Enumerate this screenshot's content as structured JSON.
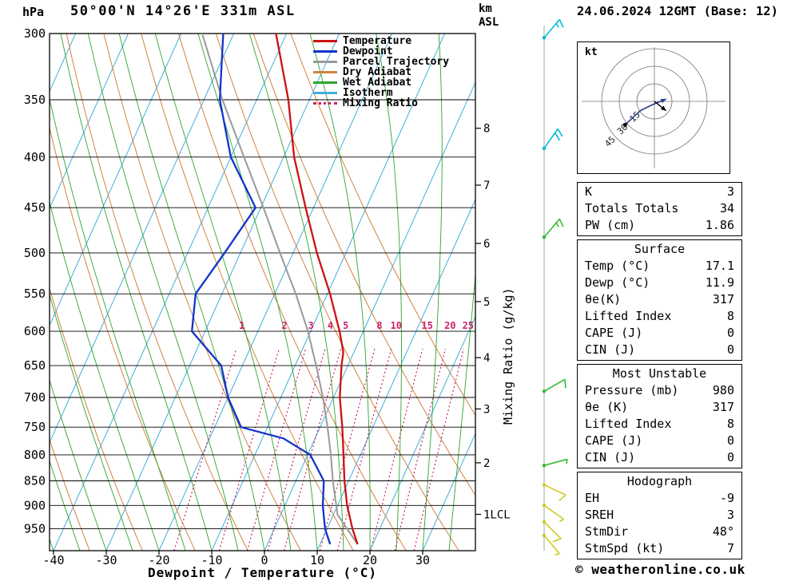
{
  "header": {
    "pressure_unit": "hPa",
    "title": "50°00'N 14°26'E 331m ASL",
    "km_label": "km",
    "asl_label": "ASL",
    "date": "24.06.2024 12GMT (Base: 12)"
  },
  "legend": [
    {
      "label": "Temperature",
      "color": "#cc1111",
      "style": "solid"
    },
    {
      "label": "Dewpoint",
      "color": "#1133cc",
      "style": "solid"
    },
    {
      "label": "Parcel Trajectory",
      "color": "#999999",
      "style": "solid"
    },
    {
      "label": "Dry Adiabat",
      "color": "#d2843c",
      "style": "solid"
    },
    {
      "label": "Wet Adiabat",
      "color": "#2fa42f",
      "style": "solid"
    },
    {
      "label": "Isotherm",
      "color": "#41aede",
      "style": "solid"
    },
    {
      "label": "Mixing Ratio",
      "color": "#cc2266",
      "style": "dotted"
    }
  ],
  "axes": {
    "pressure_ticks": [
      300,
      350,
      400,
      450,
      500,
      550,
      600,
      650,
      700,
      750,
      800,
      850,
      900,
      950
    ],
    "temp_ticks": [
      -40,
      -30,
      -20,
      -10,
      0,
      10,
      20,
      30
    ],
    "xlabel": "Dewpoint / Temperature (°C)",
    "km_ticks": [
      [
        "8",
        374
      ],
      [
        "7",
        427
      ],
      [
        "6",
        489
      ],
      [
        "5",
        560
      ],
      [
        "4",
        638
      ],
      [
        "3",
        719
      ],
      [
        "2",
        815
      ],
      [
        "1LCL",
        919
      ]
    ],
    "mixing_axis_label": "Mixing Ratio (g/kg)"
  },
  "chart_data": {
    "type": "skewt",
    "pressure_range": [
      300,
      1000
    ],
    "temp_axis_range": [
      -40,
      40
    ],
    "isotherm_step": 10,
    "dry_adiabats_theta_K": {
      "from": 230,
      "to": 330,
      "step": 10
    },
    "wet_adiabats_start_C": {
      "from": -55,
      "to": 35,
      "step": 5
    },
    "mixing_ratio_lines": [
      1,
      2,
      3,
      4,
      5,
      8,
      10,
      15,
      20,
      25
    ],
    "temperature": {
      "p": [
        985,
        950,
        900,
        850,
        800,
        750,
        700,
        650,
        630,
        600,
        550,
        500,
        450,
        400,
        350,
        300
      ],
      "t": [
        17.1,
        14.8,
        11.8,
        9.2,
        6.8,
        4.2,
        1.2,
        -1.2,
        -2.0,
        -4.5,
        -9.5,
        -15.5,
        -21.5,
        -28.0,
        -34.0,
        -42.0
      ]
    },
    "dewpoint": {
      "p": [
        985,
        950,
        900,
        850,
        800,
        770,
        750,
        700,
        650,
        600,
        550,
        500,
        450,
        400,
        350,
        300
      ],
      "t": [
        11.9,
        9.6,
        7.2,
        5.3,
        0.5,
        -6.0,
        -15.0,
        -20.0,
        -24.0,
        -32.5,
        -35.0,
        -33.0,
        -31.0,
        -40.0,
        -47.0,
        -52.0
      ]
    },
    "parcel": {
      "p": [
        985,
        920,
        850,
        800,
        750,
        700,
        650,
        600,
        550,
        500,
        450,
        400,
        350,
        300
      ],
      "t": [
        17.1,
        10.8,
        7.0,
        4.4,
        1.4,
        -2.0,
        -6.0,
        -10.5,
        -16.0,
        -22.5,
        -29.5,
        -37.5,
        -46.5,
        -56.0
      ]
    },
    "wind_barbs": [
      {
        "p": 303,
        "color": "#00bcd4",
        "dir": 40,
        "full": 1,
        "half": 1
      },
      {
        "p": 392,
        "color": "#00bcd4",
        "dir": 35,
        "full": 2,
        "half": 0
      },
      {
        "p": 482,
        "color": "#33bb33",
        "dir": 40,
        "full": 1,
        "half": 1
      },
      {
        "p": 690,
        "color": "#33bb33",
        "dir": 60,
        "full": 1,
        "half": 0
      },
      {
        "p": 820,
        "color": "#33bb33",
        "dir": 75,
        "full": 0,
        "half": 1
      },
      {
        "p": 858,
        "color": "#cccc22",
        "dir": 115,
        "full": 1,
        "half": 0
      },
      {
        "p": 900,
        "color": "#cccc22",
        "dir": 125,
        "full": 0,
        "half": 1
      },
      {
        "p": 935,
        "color": "#cccc22",
        "dir": 135,
        "full": 1,
        "half": 0
      },
      {
        "p": 965,
        "color": "#cccc22",
        "dir": 140,
        "full": 0,
        "half": 1
      }
    ]
  },
  "hodograph": {
    "unit": "kt",
    "rings": [
      15,
      30,
      45
    ],
    "trace_kt": [
      [
        -25,
        -20
      ],
      [
        -12,
        -8
      ],
      [
        -2,
        -3
      ],
      [
        10,
        2
      ]
    ],
    "storm_arrow_kt": [
      10,
      -8
    ]
  },
  "stats": {
    "boxes": [
      {
        "title": "",
        "rows": [
          [
            "K",
            "3"
          ],
          [
            "Totals Totals",
            "34"
          ],
          [
            "PW (cm)",
            "1.86"
          ]
        ]
      },
      {
        "title": "Surface",
        "rows": [
          [
            "Temp (°C)",
            "17.1"
          ],
          [
            "Dewp (°C)",
            "11.9"
          ],
          [
            "θe(K)",
            "317"
          ],
          [
            "Lifted Index",
            "8"
          ],
          [
            "CAPE (J)",
            "0"
          ],
          [
            "CIN (J)",
            "0"
          ]
        ]
      },
      {
        "title": "Most Unstable",
        "rows": [
          [
            "Pressure (mb)",
            "980"
          ],
          [
            "θe (K)",
            "317"
          ],
          [
            "Lifted Index",
            "8"
          ],
          [
            "CAPE (J)",
            "0"
          ],
          [
            "CIN (J)",
            "0"
          ]
        ]
      },
      {
        "title": "Hodograph",
        "rows": [
          [
            "EH",
            "-9"
          ],
          [
            "SREH",
            "3"
          ],
          [
            "StmDir",
            "48°"
          ],
          [
            "StmSpd (kt)",
            "7"
          ]
        ]
      }
    ]
  },
  "footer": "© weatheronline.co.uk"
}
